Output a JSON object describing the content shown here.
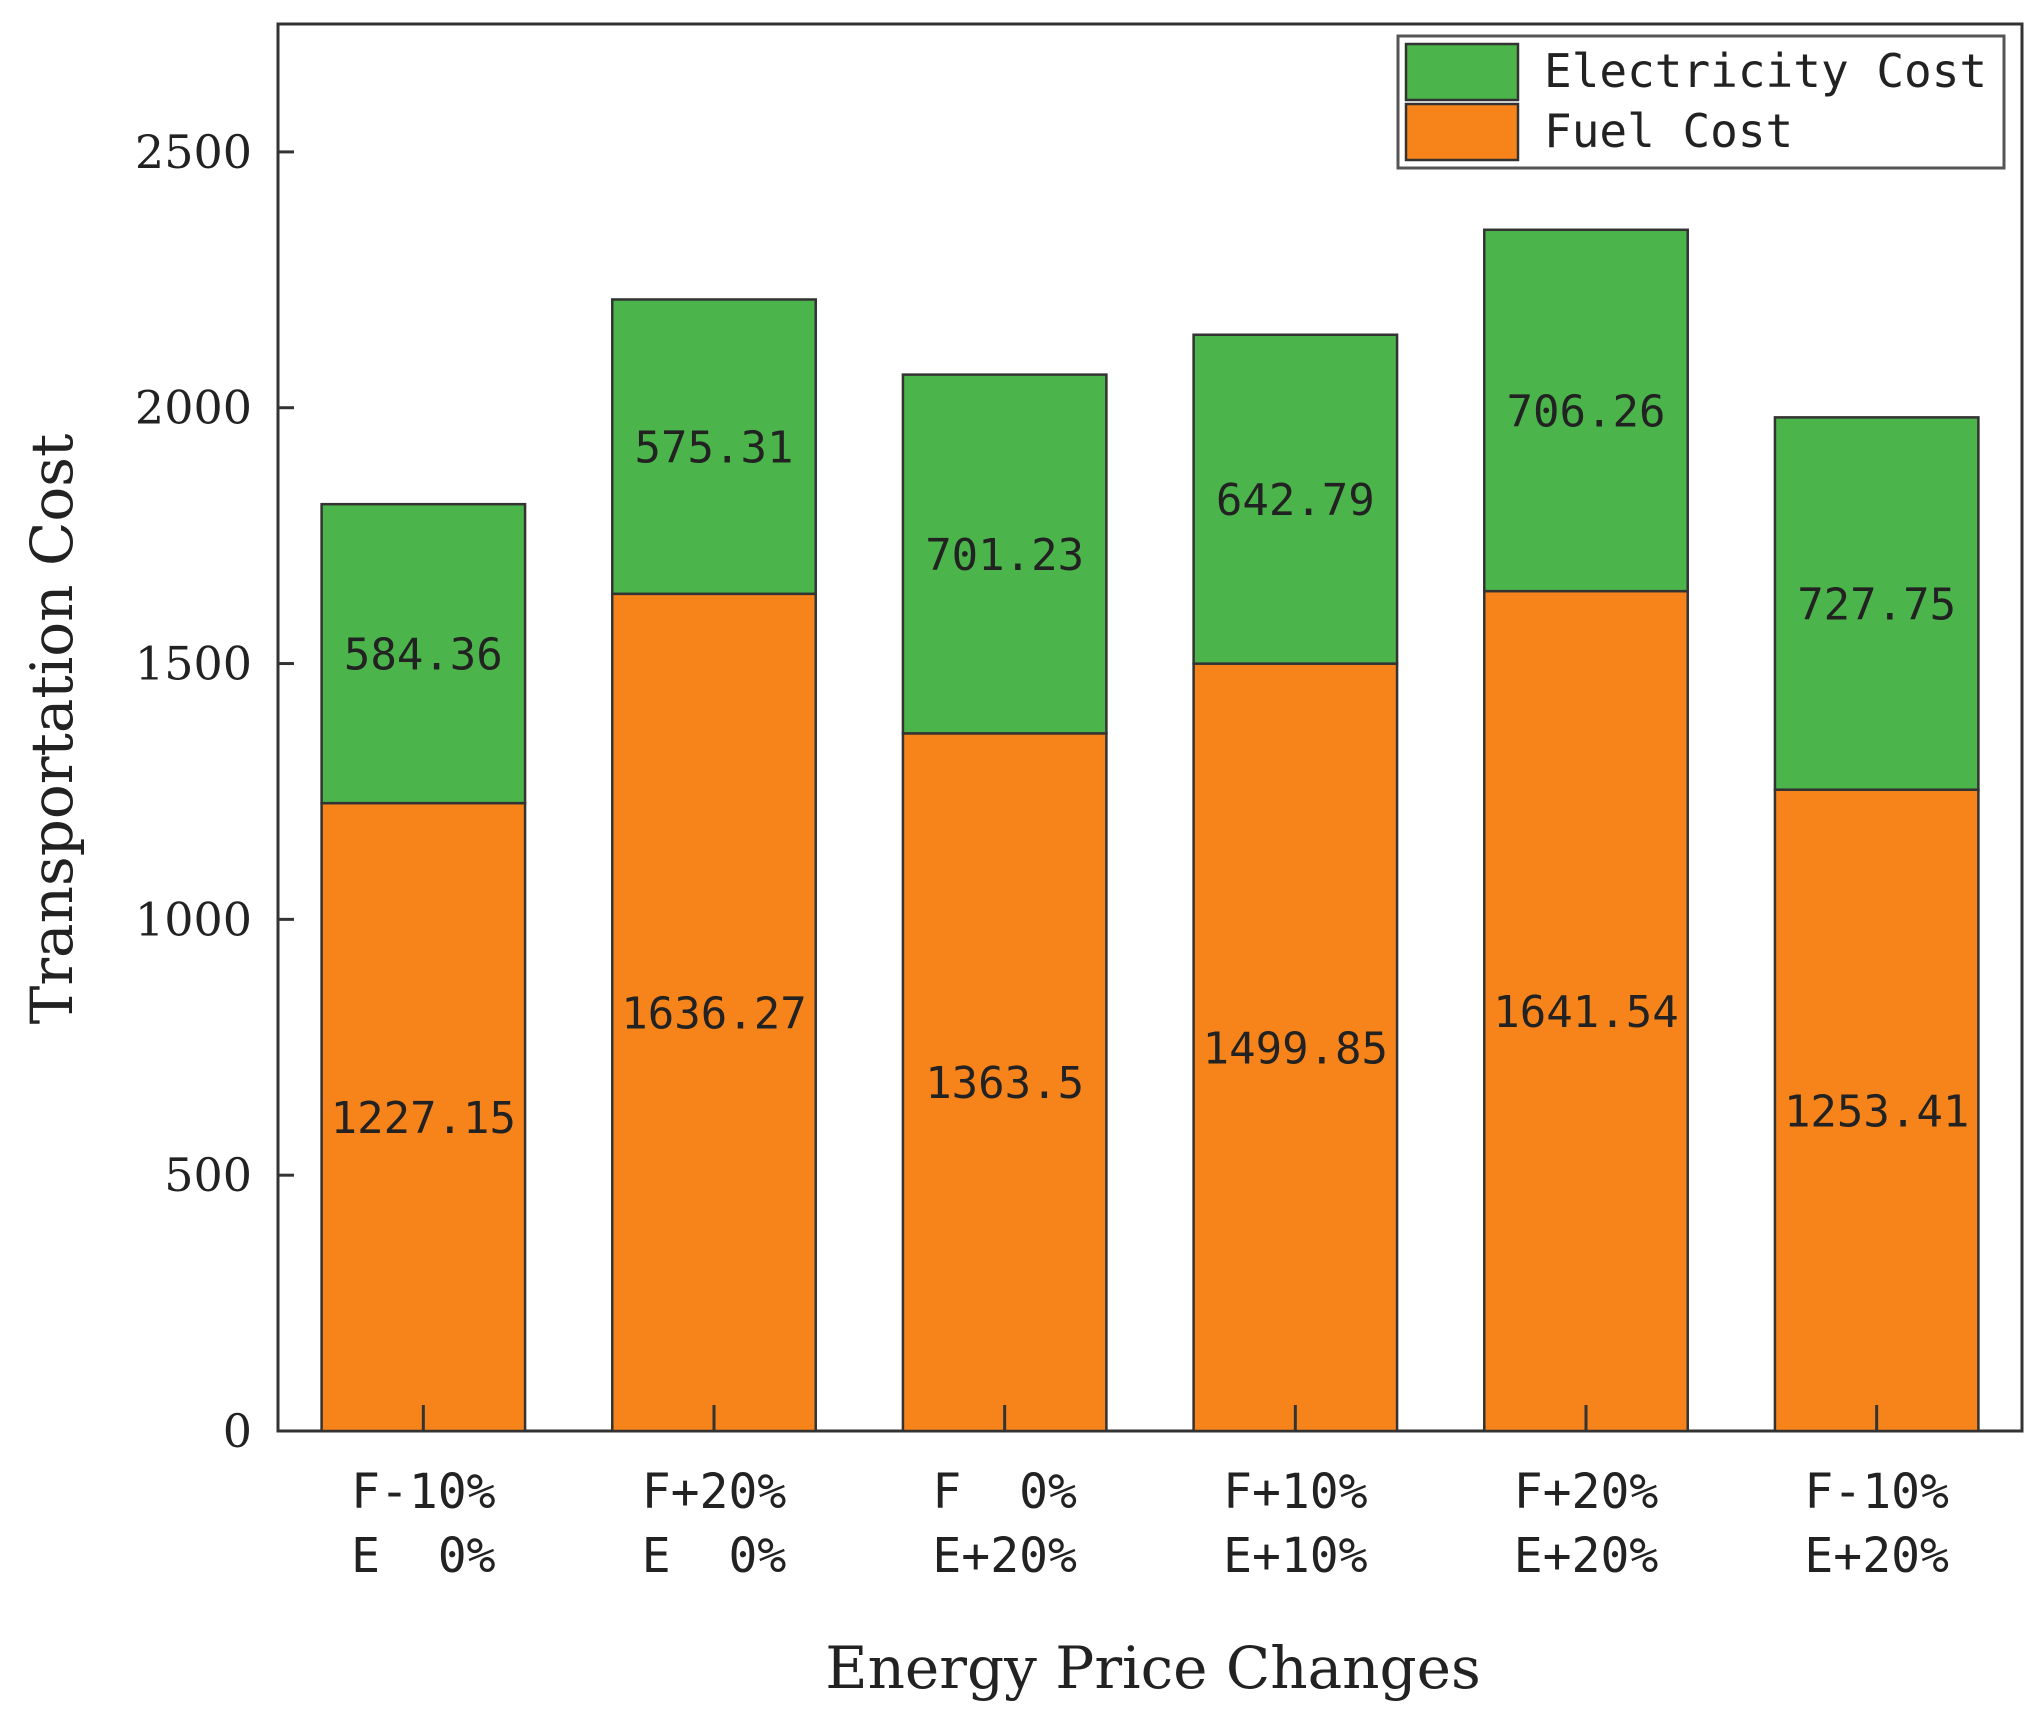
{
  "chart_data": {
    "type": "bar",
    "stacked": true,
    "xlabel": "Energy Price Changes",
    "ylabel": "Transportation Cost",
    "ylim": [
      0,
      2750
    ],
    "yticks": [
      0,
      500,
      1000,
      1500,
      2000,
      2500
    ],
    "ytick_labels": [
      "0",
      "500",
      "1000",
      "1500",
      "2000",
      "2500"
    ],
    "categories": [
      {
        "line1": "F-10%",
        "line2": "E  0%"
      },
      {
        "line1": "F+20%",
        "line2": "E  0%"
      },
      {
        "line1": "F  0%",
        "line2": "E+20%"
      },
      {
        "line1": "F+10%",
        "line2": "E+10%"
      },
      {
        "line1": "F+20%",
        "line2": "E+20%"
      },
      {
        "line1": "F-10%",
        "line2": "E+20%"
      }
    ],
    "series": [
      {
        "name": "Fuel Cost",
        "color": "#f7841b",
        "values": [
          1227.15,
          1636.27,
          1363.5,
          1499.85,
          1641.54,
          1253.41
        ],
        "labels": [
          "1227.15",
          "1636.27",
          "1363.5",
          "1499.85",
          "1641.54",
          "1253.41"
        ]
      },
      {
        "name": "Electricity Cost",
        "color": "#4bb54b",
        "values": [
          584.36,
          575.31,
          701.23,
          642.79,
          706.26,
          727.75
        ],
        "labels": [
          "584.36",
          "575.31",
          "701.23",
          "642.79",
          "706.26",
          "727.75"
        ]
      }
    ],
    "legend": {
      "position": "top-right",
      "order": [
        "Electricity Cost",
        "Fuel Cost"
      ]
    }
  }
}
